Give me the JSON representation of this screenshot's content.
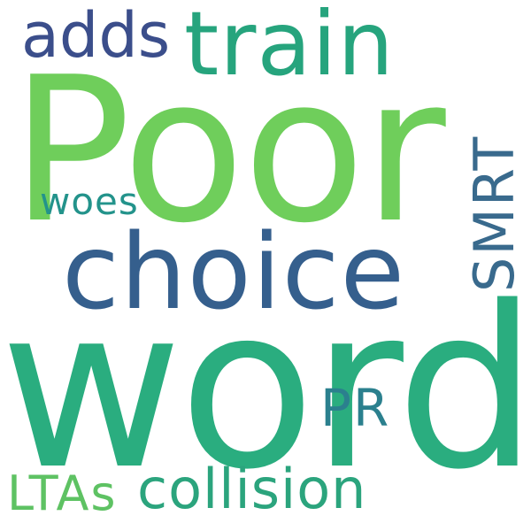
{
  "word_cloud": {
    "words": {
      "poor": {
        "text": "Poor",
        "color": "#6fce5b"
      },
      "word": {
        "text": "word",
        "color": "#2aad7f"
      },
      "train": {
        "text": "train",
        "color": "#26a47d"
      },
      "choice": {
        "text": "choice",
        "color": "#355f8d"
      },
      "adds": {
        "text": "adds",
        "color": "#3b4e8b"
      },
      "collision": {
        "text": "collision",
        "color": "#2ba47d"
      },
      "ltas": {
        "text": "LTAs",
        "color": "#5ec263"
      },
      "pr": {
        "text": "PR",
        "color": "#2b808e"
      },
      "woes": {
        "text": "woes",
        "color": "#23938b"
      },
      "smrt": {
        "text": "SMRT",
        "color": "#396a8d"
      }
    }
  }
}
